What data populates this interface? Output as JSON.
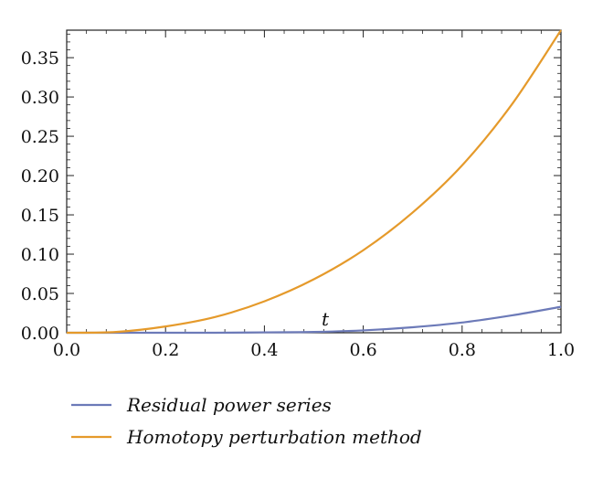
{
  "chart_data": {
    "type": "line",
    "xlabel": "t",
    "ylabel": "",
    "xlim": [
      0.0,
      1.0
    ],
    "ylim": [
      0.0,
      0.385
    ],
    "x_ticks": [
      "0.0",
      "0.2",
      "0.4",
      "0.6",
      "0.8",
      "1.0"
    ],
    "y_ticks": [
      "0.00",
      "0.05",
      "0.10",
      "0.15",
      "0.20",
      "0.25",
      "0.30",
      "0.35"
    ],
    "x": [
      0.0,
      0.1,
      0.2,
      0.3,
      0.4,
      0.5,
      0.6,
      0.7,
      0.8,
      0.9,
      1.0
    ],
    "series": [
      {
        "name": "Residual power series",
        "color": "#6c7ab8",
        "values": [
          0.0,
          0.0,
          0.0,
          0.0,
          0.0005,
          0.001,
          0.003,
          0.007,
          0.013,
          0.022,
          0.033
        ]
      },
      {
        "name": "Homotopy perturbation method",
        "color": "#e59a2b",
        "values": [
          0.0,
          0.001,
          0.008,
          0.02,
          0.04,
          0.068,
          0.105,
          0.153,
          0.213,
          0.29,
          0.385
        ]
      }
    ],
    "grid": false,
    "legend_position": "bottom-left"
  }
}
